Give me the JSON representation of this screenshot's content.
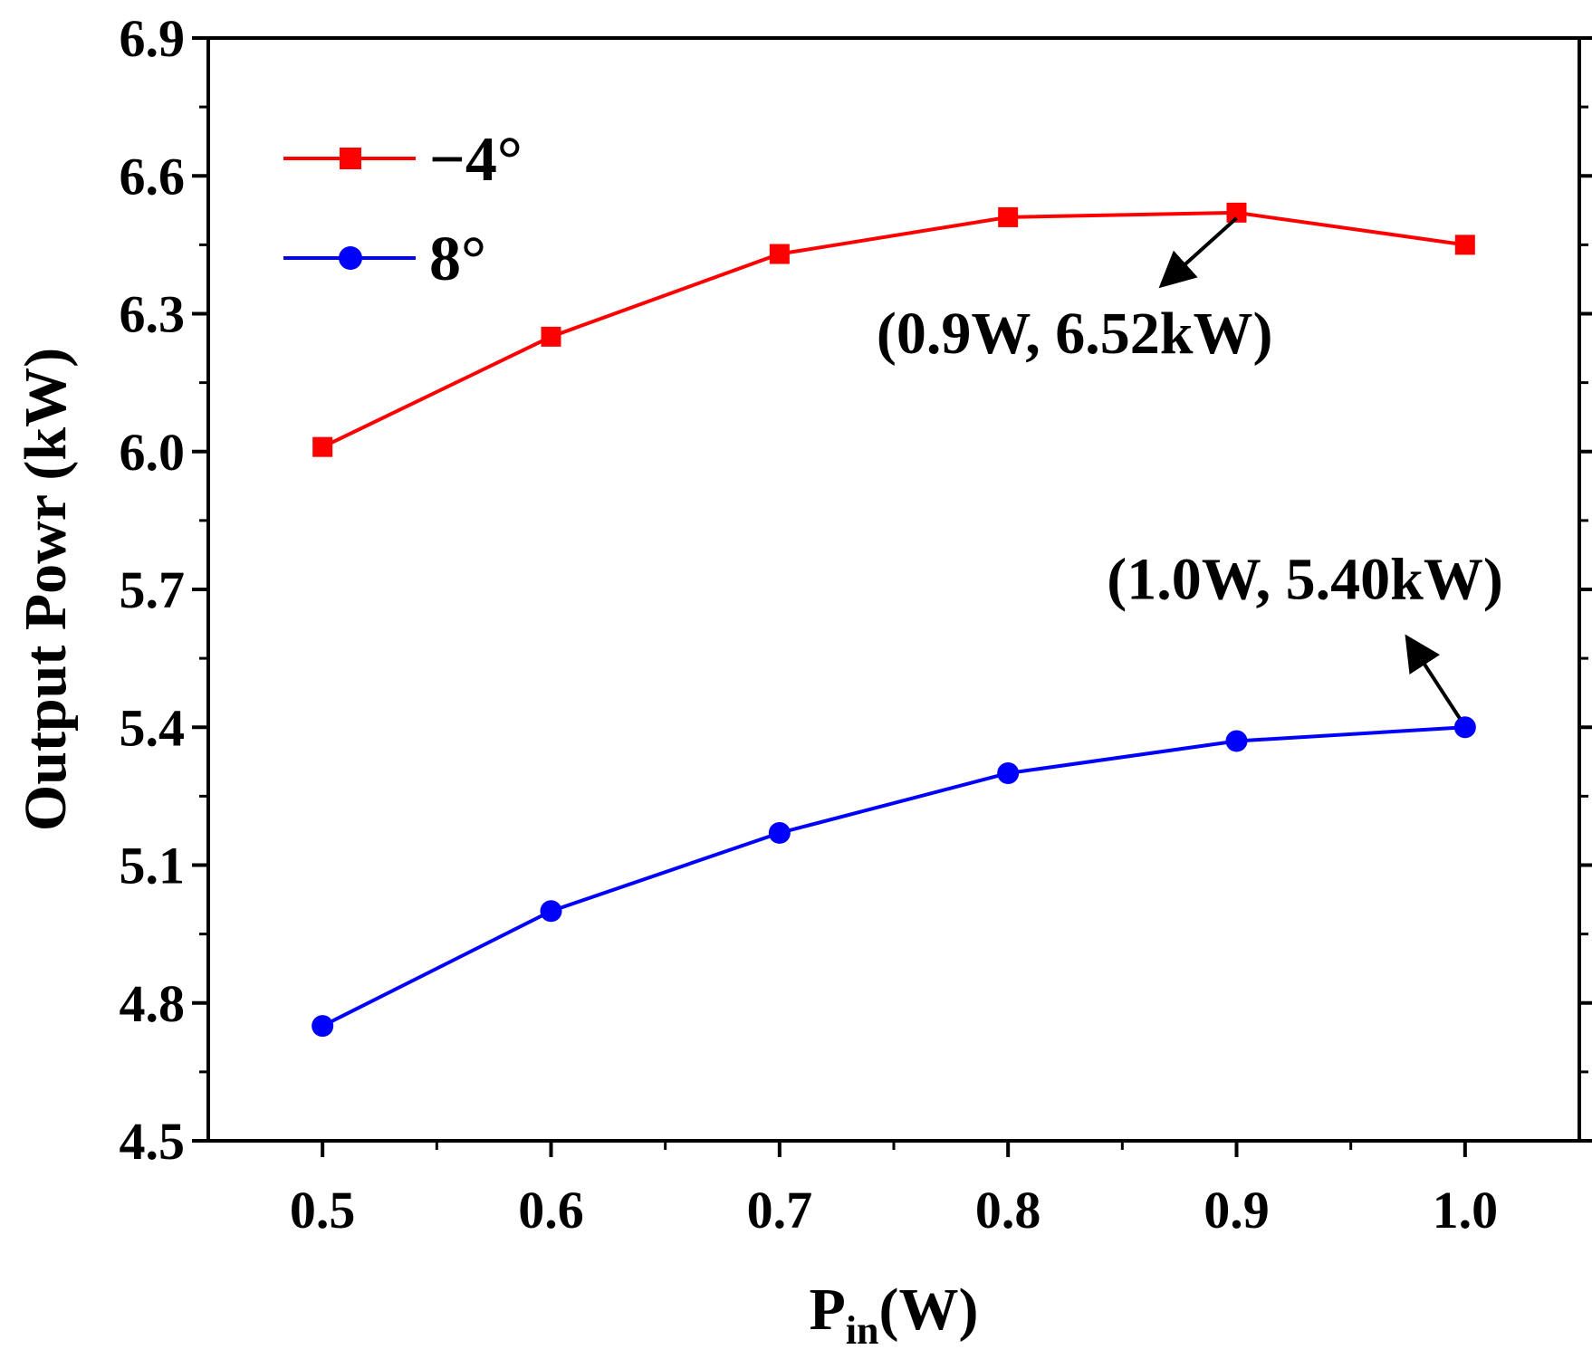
{
  "chart_data": {
    "type": "line",
    "title": "",
    "xlabel": "P",
    "xlabel_subscript": "in",
    "xlabel_unit": "(W)",
    "ylabel": "Output Powr (kW)",
    "x": [
      0.5,
      0.6,
      0.7,
      0.8,
      0.9,
      1.0
    ],
    "xlim": [
      0.45,
      1.05
    ],
    "ylim": [
      4.5,
      6.9
    ],
    "x_tick_labels": [
      "0.5",
      "0.6",
      "0.7",
      "0.8",
      "0.9",
      "1.0"
    ],
    "y_tick_labels": [
      "4.5",
      "4.8",
      "5.1",
      "5.4",
      "5.7",
      "6.0",
      "6.3",
      "6.6",
      "6.9"
    ],
    "grid": false,
    "legend_position": "top-left",
    "series": [
      {
        "name": "−4°",
        "color": "#ff0000",
        "marker": "square",
        "values": [
          6.01,
          6.25,
          6.43,
          6.51,
          6.52,
          6.45
        ]
      },
      {
        "name": "8°",
        "color": "#0000ff",
        "marker": "circle",
        "values": [
          4.75,
          5.0,
          5.17,
          5.3,
          5.37,
          5.4
        ]
      }
    ],
    "annotations": [
      {
        "text": "(0.9W, 6.52kW)",
        "x": 0.9,
        "y": 6.52,
        "series": 0,
        "placement": "below-left"
      },
      {
        "text": "(1.0W, 5.40kW)",
        "x": 1.0,
        "y": 5.4,
        "series": 1,
        "placement": "above-left"
      }
    ]
  }
}
